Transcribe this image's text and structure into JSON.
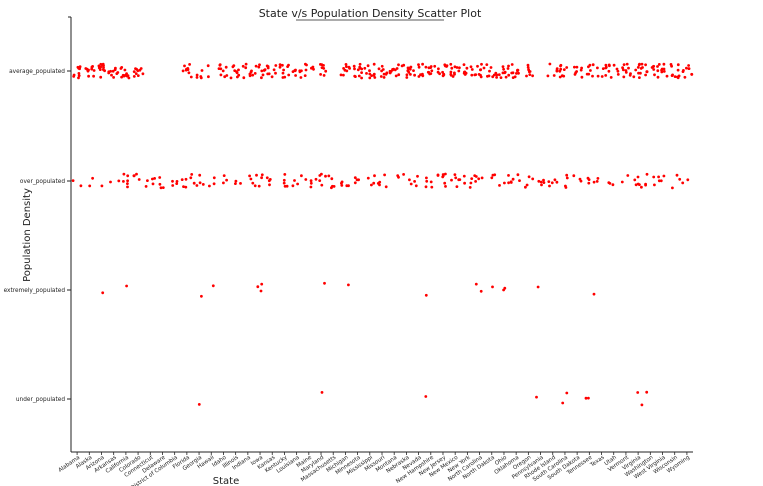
{
  "chart_data": {
    "type": "scatter",
    "title": "State v/s Population Density Scatter Plot",
    "xlabel": "State",
    "ylabel": "Population Density",
    "categories": [
      "Alabama",
      "Alaska",
      "Arizona",
      "Arkansas",
      "California",
      "Colorado",
      "Connecticut",
      "Delaware",
      "District of Columbia",
      "Florida",
      "Georgia",
      "Hawaii",
      "Idaho",
      "Illinois",
      "Indiana",
      "Iowa",
      "Kansas",
      "Kentucky",
      "Louisiana",
      "Maine",
      "Maryland",
      "Massachusetts",
      "Michigan",
      "Minnesota",
      "Mississippi",
      "Missouri",
      "Montana",
      "Nebraska",
      "Nevada",
      "New Hampshire",
      "New Jersey",
      "New Mexico",
      "New York",
      "North Carolina",
      "North Dakota",
      "Ohio",
      "Oklahoma",
      "Oregon",
      "Pennsylvania",
      "Rhode Island",
      "South Carolina",
      "South Dakota",
      "Tennessee",
      "Texas",
      "Utah",
      "Vermont",
      "Virginia",
      "Washington",
      "West Virginia",
      "Wisconsin",
      "Wyoming"
    ],
    "y_categories": [
      "average_populated",
      "over_populated",
      "extremely_populated",
      "under_populated"
    ],
    "point_color": "#ff0000",
    "grid": false,
    "points": [
      {
        "x": "Alabama",
        "y": "average_populated",
        "count": 9
      },
      {
        "x": "Alabama",
        "y": "over_populated",
        "count": 2
      },
      {
        "x": "Alaska",
        "y": "average_populated",
        "count": 10
      },
      {
        "x": "Alaska",
        "y": "over_populated",
        "count": 2
      },
      {
        "x": "Arizona",
        "y": "average_populated",
        "count": 12
      },
      {
        "x": "Arizona",
        "y": "over_populated",
        "count": 1
      },
      {
        "x": "Arizona",
        "y": "extremely_populated",
        "count": 1
      },
      {
        "x": "Arkansas",
        "y": "average_populated",
        "count": 10
      },
      {
        "x": "Arkansas",
        "y": "over_populated",
        "count": 2
      },
      {
        "x": "California",
        "y": "average_populated",
        "count": 12
      },
      {
        "x": "California",
        "y": "over_populated",
        "count": 6
      },
      {
        "x": "California",
        "y": "extremely_populated",
        "count": 1
      },
      {
        "x": "Colorado",
        "y": "average_populated",
        "count": 10
      },
      {
        "x": "Colorado",
        "y": "over_populated",
        "count": 4
      },
      {
        "x": "Connecticut",
        "y": "over_populated",
        "count": 5
      },
      {
        "x": "Delaware",
        "y": "over_populated",
        "count": 4
      },
      {
        "x": "District of Columbia",
        "y": "over_populated",
        "count": 4
      },
      {
        "x": "Florida",
        "y": "average_populated",
        "count": 10
      },
      {
        "x": "Florida",
        "y": "over_populated",
        "count": 6
      },
      {
        "x": "Georgia",
        "y": "average_populated",
        "count": 5
      },
      {
        "x": "Georgia",
        "y": "over_populated",
        "count": 5
      },
      {
        "x": "Georgia",
        "y": "extremely_populated",
        "count": 1
      },
      {
        "x": "Georgia",
        "y": "under_populated",
        "count": 1
      },
      {
        "x": "Hawaii",
        "y": "average_populated",
        "count": 2
      },
      {
        "x": "Hawaii",
        "y": "over_populated",
        "count": 3
      },
      {
        "x": "Hawaii",
        "y": "extremely_populated",
        "count": 1
      },
      {
        "x": "Idaho",
        "y": "average_populated",
        "count": 9
      },
      {
        "x": "Idaho",
        "y": "over_populated",
        "count": 3
      },
      {
        "x": "Illinois",
        "y": "average_populated",
        "count": 9
      },
      {
        "x": "Illinois",
        "y": "over_populated",
        "count": 3
      },
      {
        "x": "Indiana",
        "y": "average_populated",
        "count": 9
      },
      {
        "x": "Indiana",
        "y": "over_populated",
        "count": 3
      },
      {
        "x": "Iowa",
        "y": "average_populated",
        "count": 10
      },
      {
        "x": "Iowa",
        "y": "over_populated",
        "count": 5
      },
      {
        "x": "Iowa",
        "y": "extremely_populated",
        "count": 3
      },
      {
        "x": "Kansas",
        "y": "average_populated",
        "count": 9
      },
      {
        "x": "Kansas",
        "y": "over_populated",
        "count": 4
      },
      {
        "x": "Kentucky",
        "y": "average_populated",
        "count": 10
      },
      {
        "x": "Kentucky",
        "y": "over_populated",
        "count": 5
      },
      {
        "x": "Louisiana",
        "y": "average_populated",
        "count": 9
      },
      {
        "x": "Louisiana",
        "y": "over_populated",
        "count": 4
      },
      {
        "x": "Maine",
        "y": "average_populated",
        "count": 7
      },
      {
        "x": "Maine",
        "y": "over_populated",
        "count": 4
      },
      {
        "x": "Maryland",
        "y": "average_populated",
        "count": 8
      },
      {
        "x": "Maryland",
        "y": "over_populated",
        "count": 6
      },
      {
        "x": "Maryland",
        "y": "extremely_populated",
        "count": 1
      },
      {
        "x": "Maryland",
        "y": "under_populated",
        "count": 1
      },
      {
        "x": "Massachusetts",
        "y": "over_populated",
        "count": 5
      },
      {
        "x": "Michigan",
        "y": "average_populated",
        "count": 9
      },
      {
        "x": "Michigan",
        "y": "over_populated",
        "count": 5
      },
      {
        "x": "Michigan",
        "y": "extremely_populated",
        "count": 1
      },
      {
        "x": "Minnesota",
        "y": "average_populated",
        "count": 12
      },
      {
        "x": "Minnesota",
        "y": "over_populated",
        "count": 4
      },
      {
        "x": "Mississippi",
        "y": "average_populated",
        "count": 11
      },
      {
        "x": "Mississippi",
        "y": "over_populated",
        "count": 4
      },
      {
        "x": "Missouri",
        "y": "average_populated",
        "count": 10
      },
      {
        "x": "Missouri",
        "y": "over_populated",
        "count": 5
      },
      {
        "x": "Montana",
        "y": "average_populated",
        "count": 11
      },
      {
        "x": "Montana",
        "y": "over_populated",
        "count": 2
      },
      {
        "x": "Nebraska",
        "y": "average_populated",
        "count": 12
      },
      {
        "x": "Nebraska",
        "y": "over_populated",
        "count": 3
      },
      {
        "x": "Nevada",
        "y": "average_populated",
        "count": 9
      },
      {
        "x": "Nevada",
        "y": "over_populated",
        "count": 3
      },
      {
        "x": "New Hampshire",
        "y": "average_populated",
        "count": 10
      },
      {
        "x": "New Hampshire",
        "y": "over_populated",
        "count": 5
      },
      {
        "x": "New Hampshire",
        "y": "extremely_populated",
        "count": 1
      },
      {
        "x": "New Hampshire",
        "y": "under_populated",
        "count": 1
      },
      {
        "x": "New Jersey",
        "y": "average_populated",
        "count": 11
      },
      {
        "x": "New Jersey",
        "y": "over_populated",
        "count": 8
      },
      {
        "x": "New Mexico",
        "y": "average_populated",
        "count": 12
      },
      {
        "x": "New Mexico",
        "y": "over_populated",
        "count": 6
      },
      {
        "x": "New York",
        "y": "average_populated",
        "count": 10
      },
      {
        "x": "New York",
        "y": "over_populated",
        "count": 5
      },
      {
        "x": "North Carolina",
        "y": "average_populated",
        "count": 10
      },
      {
        "x": "North Carolina",
        "y": "over_populated",
        "count": 5
      },
      {
        "x": "North Carolina",
        "y": "extremely_populated",
        "count": 2
      },
      {
        "x": "North Dakota",
        "y": "average_populated",
        "count": 10
      },
      {
        "x": "North Dakota",
        "y": "over_populated",
        "count": 3
      },
      {
        "x": "North Dakota",
        "y": "extremely_populated",
        "count": 1
      },
      {
        "x": "Ohio",
        "y": "average_populated",
        "count": 11
      },
      {
        "x": "Ohio",
        "y": "over_populated",
        "count": 4
      },
      {
        "x": "Ohio",
        "y": "extremely_populated",
        "count": 2
      },
      {
        "x": "Oklahoma",
        "y": "average_populated",
        "count": 10
      },
      {
        "x": "Oklahoma",
        "y": "over_populated",
        "count": 5
      },
      {
        "x": "Oregon",
        "y": "average_populated",
        "count": 8
      },
      {
        "x": "Oregon",
        "y": "over_populated",
        "count": 4
      },
      {
        "x": "Pennsylvania",
        "y": "over_populated",
        "count": 5
      },
      {
        "x": "Pennsylvania",
        "y": "extremely_populated",
        "count": 1
      },
      {
        "x": "Pennsylvania",
        "y": "under_populated",
        "count": 1
      },
      {
        "x": "Rhode Island",
        "y": "average_populated",
        "count": 6
      },
      {
        "x": "Rhode Island",
        "y": "over_populated",
        "count": 5
      },
      {
        "x": "South Carolina",
        "y": "average_populated",
        "count": 9
      },
      {
        "x": "South Carolina",
        "y": "over_populated",
        "count": 4
      },
      {
        "x": "South Carolina",
        "y": "under_populated",
        "count": 2
      },
      {
        "x": "South Dakota",
        "y": "average_populated",
        "count": 8
      },
      {
        "x": "South Dakota",
        "y": "over_populated",
        "count": 3
      },
      {
        "x": "Tennessee",
        "y": "average_populated",
        "count": 7
      },
      {
        "x": "Tennessee",
        "y": "over_populated",
        "count": 4
      },
      {
        "x": "Tennessee",
        "y": "extremely_populated",
        "count": 1
      },
      {
        "x": "Tennessee",
        "y": "under_populated",
        "count": 2
      },
      {
        "x": "Texas",
        "y": "average_populated",
        "count": 8
      },
      {
        "x": "Texas",
        "y": "over_populated",
        "count": 2
      },
      {
        "x": "Utah",
        "y": "average_populated",
        "count": 8
      },
      {
        "x": "Utah",
        "y": "over_populated",
        "count": 3
      },
      {
        "x": "Vermont",
        "y": "average_populated",
        "count": 10
      },
      {
        "x": "Vermont",
        "y": "over_populated",
        "count": 2
      },
      {
        "x": "Virginia",
        "y": "average_populated",
        "count": 11
      },
      {
        "x": "Virginia",
        "y": "over_populated",
        "count": 6
      },
      {
        "x": "Virginia",
        "y": "under_populated",
        "count": 2
      },
      {
        "x": "Washington",
        "y": "average_populated",
        "count": 9
      },
      {
        "x": "Washington",
        "y": "over_populated",
        "count": 5
      },
      {
        "x": "Washington",
        "y": "under_populated",
        "count": 1
      },
      {
        "x": "West Virginia",
        "y": "average_populated",
        "count": 11
      },
      {
        "x": "West Virginia",
        "y": "over_populated",
        "count": 4
      },
      {
        "x": "Wisconsin",
        "y": "average_populated",
        "count": 10
      },
      {
        "x": "Wisconsin",
        "y": "over_populated",
        "count": 3
      },
      {
        "x": "Wyoming",
        "y": "average_populated",
        "count": 9
      },
      {
        "x": "Wyoming",
        "y": "over_populated",
        "count": 2
      }
    ]
  }
}
